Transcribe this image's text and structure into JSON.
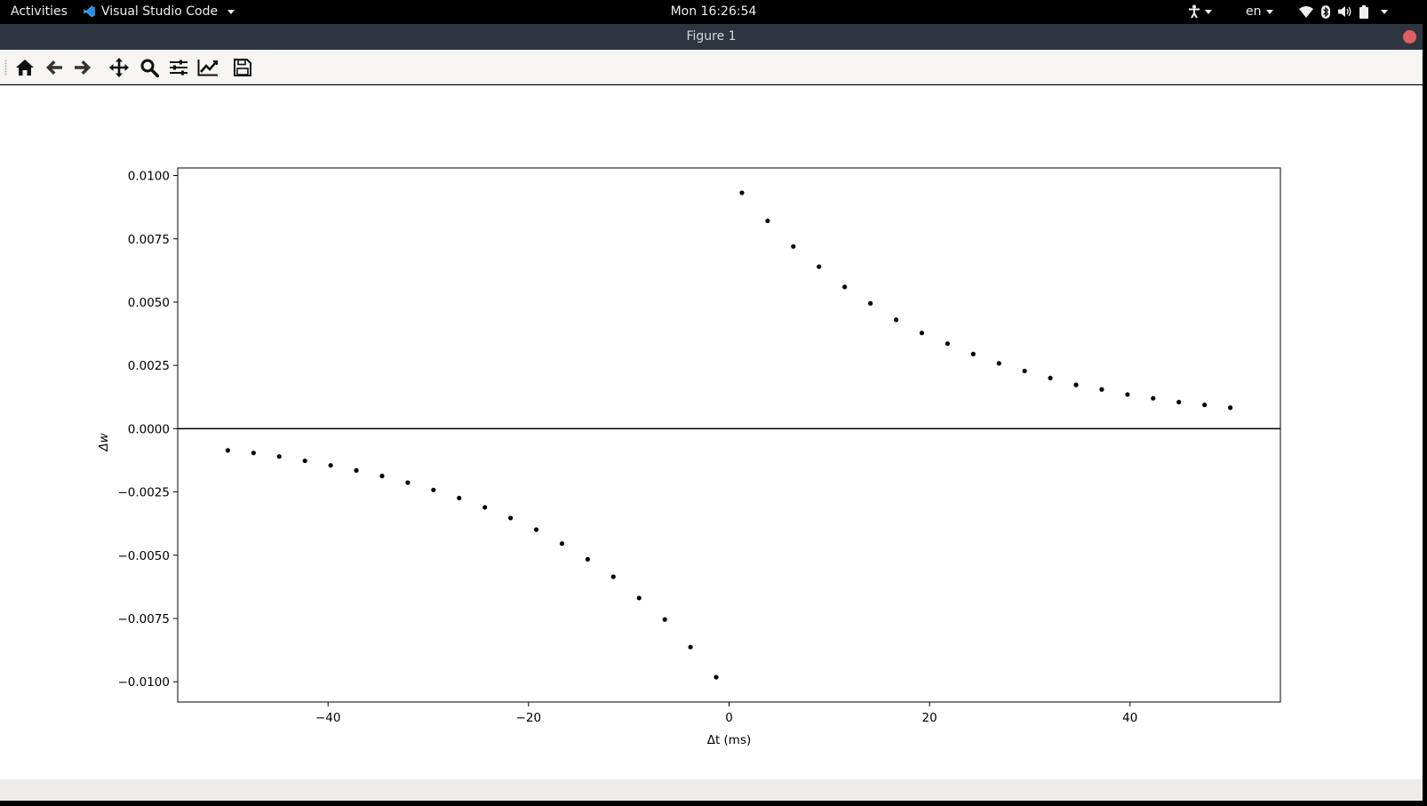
{
  "topbar": {
    "activities": "Activities",
    "app_name": "Visual Studio Code",
    "clock": "Mon 16:26:54",
    "lang": "en"
  },
  "window": {
    "title": "Figure 1"
  },
  "toolbar": {
    "icons": [
      "home-icon",
      "back-arrow-icon",
      "forward-arrow-icon",
      "pan-icon",
      "zoom-icon",
      "configure-subplots-icon",
      "edit-axis-icon",
      "save-icon"
    ]
  },
  "chart_data": {
    "type": "scatter",
    "xlabel": "Δt (ms)",
    "ylabel": "Δw",
    "xlim": [
      -55,
      55
    ],
    "ylim": [
      -0.0108,
      0.0103
    ],
    "xticks": [
      -40,
      -20,
      0,
      20,
      40
    ],
    "xtick_labels": [
      "−40",
      "−20",
      "0",
      "20",
      "40"
    ],
    "yticks": [
      0.01,
      0.0075,
      0.005,
      0.0025,
      0,
      -0.0025,
      -0.005,
      -0.0075,
      -0.01
    ],
    "ytick_labels": [
      "0.0100",
      "0.0075",
      "0.0050",
      "0.0025",
      "0.0000",
      "−0.0025",
      "−0.0050",
      "−0.0075",
      "−0.0100"
    ],
    "hline_y": 0,
    "grid": false,
    "series": [
      {
        "color": "#000000",
        "x": [
          -50,
          -47.4359,
          -44.8718,
          -42.3077,
          -39.7436,
          -37.1795,
          -34.6154,
          -32.0513,
          -29.4872,
          -26.9231,
          -24.359,
          -21.7949,
          -19.2308,
          -16.6667,
          -14.1026,
          -11.5385,
          -8.9744,
          -6.4103,
          -3.8462,
          -1.2821,
          1.2821,
          3.8462,
          6.4103,
          8.9744,
          11.5385,
          14.1026,
          16.6667,
          19.2308,
          21.7949,
          24.359,
          26.9231,
          29.4872,
          32.0513,
          34.6154,
          37.1795,
          39.7436,
          42.3077,
          44.8718,
          47.4359,
          50
        ],
        "y": [
          -0.00086,
          -0.00096,
          -0.0011,
          -0.00127,
          -0.00145,
          -0.00165,
          -0.00187,
          -0.00213,
          -0.00242,
          -0.00274,
          -0.00311,
          -0.00353,
          -0.00399,
          -0.00454,
          -0.00516,
          -0.00585,
          -0.00669,
          -0.00754,
          -0.00863,
          -0.00982,
          0.00932,
          0.00821,
          0.0072,
          0.0064,
          0.0056,
          0.00495,
          0.0043,
          0.00378,
          0.00336,
          0.00295,
          0.00258,
          0.00228,
          0.002,
          0.00173,
          0.00155,
          0.00135,
          0.0012,
          0.00105,
          0.00094,
          0.00083
        ]
      }
    ]
  }
}
